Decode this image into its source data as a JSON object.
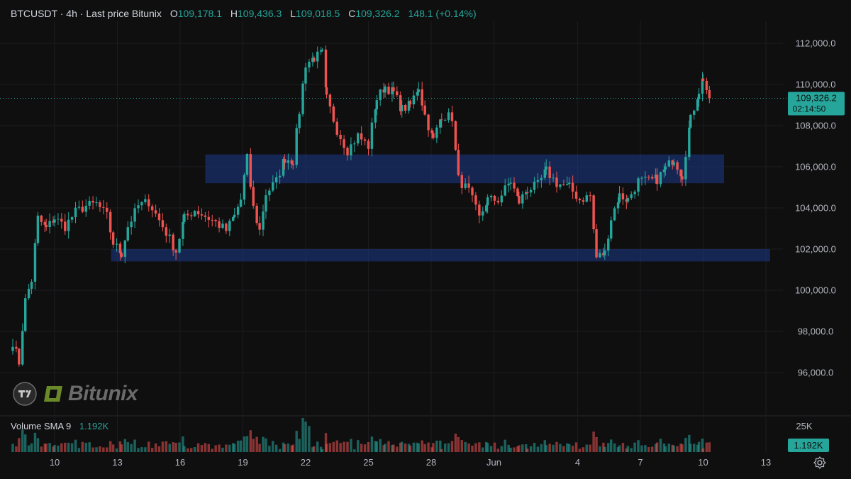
{
  "header": {
    "symbol": "BTCUSDT · 4h · Last price Bitunix",
    "open_label": "O",
    "open": "109,178.1",
    "high_label": "H",
    "high": "109,436.3",
    "low_label": "L",
    "low": "109,018.5",
    "close_label": "C",
    "close": "109,326.2",
    "change": "148.1 (+0.14%)"
  },
  "volume_header": {
    "label": "Volume SMA 9",
    "value": "1.192K"
  },
  "brand": {
    "name": "Bitunix"
  },
  "colors": {
    "up": "#26a69a",
    "down": "#ef5350",
    "zone": "#1e3a8a",
    "bg": "#0f0f10"
  },
  "chart_data": {
    "type": "candlestick",
    "title": "BTCUSDT · 4h · Last price Bitunix",
    "interval": "4h",
    "ylim": [
      95000,
      112800
    ],
    "y_ticks": [
      "112,000.0",
      "110,000.0",
      "108,000.0",
      "106,000.0",
      "104,000.0",
      "102,000.0",
      "100,000.0",
      "98,000.0",
      "96,000.0"
    ],
    "x_ticks": [
      "10",
      "13",
      "16",
      "19",
      "22",
      "25",
      "28",
      "Jun",
      "4",
      "7",
      "10",
      "13"
    ],
    "last_price": {
      "value": 109326.2,
      "label": "109,326.2",
      "countdown": "02:14:50"
    },
    "zones": [
      {
        "from": 105200,
        "to": 106600,
        "start_day": 17.2,
        "end_day": 42
      },
      {
        "from": 101400,
        "to": 102000,
        "start_day": 12.7,
        "end_day": 44.2
      }
    ],
    "waypoints": [
      [
        8.0,
        97500
      ],
      [
        8.3,
        96500
      ],
      [
        8.6,
        99500
      ],
      [
        8.9,
        100500
      ],
      [
        9.2,
        103500
      ],
      [
        9.6,
        103000
      ],
      [
        10.0,
        103500
      ],
      [
        10.5,
        103100
      ],
      [
        11.0,
        103800
      ],
      [
        11.5,
        104100
      ],
      [
        12.0,
        104200
      ],
      [
        12.5,
        103600
      ],
      [
        12.8,
        102300
      ],
      [
        13.2,
        101800
      ],
      [
        13.5,
        103100
      ],
      [
        14.0,
        104100
      ],
      [
        14.5,
        104300
      ],
      [
        15.0,
        103400
      ],
      [
        15.5,
        102500
      ],
      [
        15.8,
        101900
      ],
      [
        16.2,
        103500
      ],
      [
        16.7,
        103900
      ],
      [
        17.2,
        103600
      ],
      [
        17.7,
        103300
      ],
      [
        18.2,
        102900
      ],
      [
        18.6,
        103600
      ],
      [
        18.9,
        104400
      ],
      [
        19.2,
        106400
      ],
      [
        19.5,
        104000
      ],
      [
        19.8,
        102900
      ],
      [
        20.1,
        104700
      ],
      [
        20.6,
        105300
      ],
      [
        21.0,
        106400
      ],
      [
        21.4,
        106300
      ],
      [
        21.7,
        108700
      ],
      [
        22.0,
        111000
      ],
      [
        22.4,
        111300
      ],
      [
        22.8,
        111500
      ],
      [
        23.0,
        109300
      ],
      [
        23.5,
        107800
      ],
      [
        24.0,
        106800
      ],
      [
        24.5,
        107500
      ],
      [
        25.0,
        107000
      ],
      [
        25.4,
        109300
      ],
      [
        25.8,
        109900
      ],
      [
        26.2,
        109600
      ],
      [
        26.6,
        108800
      ],
      [
        27.0,
        109000
      ],
      [
        27.4,
        109900
      ],
      [
        27.7,
        108500
      ],
      [
        28.1,
        107300
      ],
      [
        28.5,
        108500
      ],
      [
        29.0,
        108400
      ],
      [
        29.3,
        105400
      ],
      [
        29.8,
        104800
      ],
      [
        30.3,
        103500
      ],
      [
        30.7,
        104400
      ],
      [
        31.2,
        104400
      ],
      [
        31.8,
        105300
      ],
      [
        32.2,
        104300
      ],
      [
        32.6,
        104900
      ],
      [
        33.1,
        105100
      ],
      [
        33.5,
        105800
      ],
      [
        34.0,
        105200
      ],
      [
        34.6,
        105000
      ],
      [
        35.1,
        104400
      ],
      [
        35.6,
        104600
      ],
      [
        35.9,
        101600
      ],
      [
        36.3,
        101800
      ],
      [
        36.6,
        103500
      ],
      [
        37.0,
        104600
      ],
      [
        37.4,
        104400
      ],
      [
        37.9,
        105300
      ],
      [
        38.4,
        105300
      ],
      [
        38.8,
        105400
      ],
      [
        39.2,
        105900
      ],
      [
        39.6,
        106400
      ],
      [
        40.0,
        105600
      ],
      [
        40.4,
        108300
      ],
      [
        40.8,
        109700
      ],
      [
        41.0,
        110300
      ],
      [
        41.3,
        109300
      ]
    ],
    "volume": {
      "ylim": [
        0,
        30000
      ],
      "y_ticks": [
        "25K"
      ],
      "sma_value": "1.192K"
    }
  }
}
